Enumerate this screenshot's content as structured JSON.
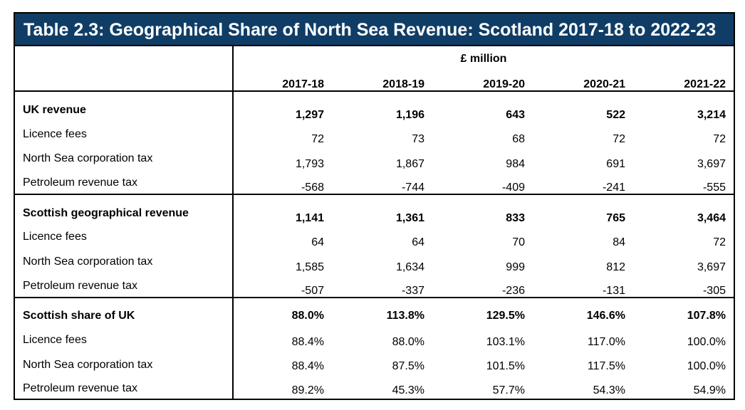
{
  "title": "Table 2.3: Geographical Share of North Sea Revenue: Scotland 2017-18 to 2022-23",
  "unit": "£ million",
  "columns": [
    "2017-18",
    "2018-19",
    "2019-20",
    "2020-21",
    "2021-22"
  ],
  "sections": [
    {
      "heading": "UK revenue",
      "totals": [
        "1,297",
        "1,196",
        "643",
        "522",
        "3,214"
      ],
      "rows": [
        {
          "label": "Licence fees",
          "values": [
            "72",
            "73",
            "68",
            "72",
            "72"
          ]
        },
        {
          "label": "North Sea corporation tax",
          "values": [
            "1,793",
            "1,867",
            "984",
            "691",
            "3,697"
          ]
        },
        {
          "label": "Petroleum revenue tax",
          "values": [
            "-568",
            "-744",
            "-409",
            "-241",
            "-555"
          ]
        }
      ]
    },
    {
      "heading": "Scottish geographical revenue",
      "totals": [
        "1,141",
        "1,361",
        "833",
        "765",
        "3,464"
      ],
      "rows": [
        {
          "label": "Licence fees",
          "values": [
            "64",
            "64",
            "70",
            "84",
            "72"
          ]
        },
        {
          "label": "North Sea corporation tax",
          "values": [
            "1,585",
            "1,634",
            "999",
            "812",
            "3,697"
          ]
        },
        {
          "label": "Petroleum revenue tax",
          "values": [
            "-507",
            "-337",
            "-236",
            "-131",
            "-305"
          ]
        }
      ]
    },
    {
      "heading": "Scottish share of UK",
      "totals": [
        "88.0%",
        "113.8%",
        "129.5%",
        "146.6%",
        "107.8%"
      ],
      "rows": [
        {
          "label": "Licence fees",
          "values": [
            "88.4%",
            "88.0%",
            "103.1%",
            "117.0%",
            "100.0%"
          ]
        },
        {
          "label": "North Sea corporation tax",
          "values": [
            "88.4%",
            "87.5%",
            "101.5%",
            "117.5%",
            "100.0%"
          ]
        },
        {
          "label": "Petroleum revenue tax",
          "values": [
            "89.2%",
            "45.3%",
            "57.7%",
            "54.3%",
            "54.9%"
          ]
        }
      ]
    }
  ]
}
